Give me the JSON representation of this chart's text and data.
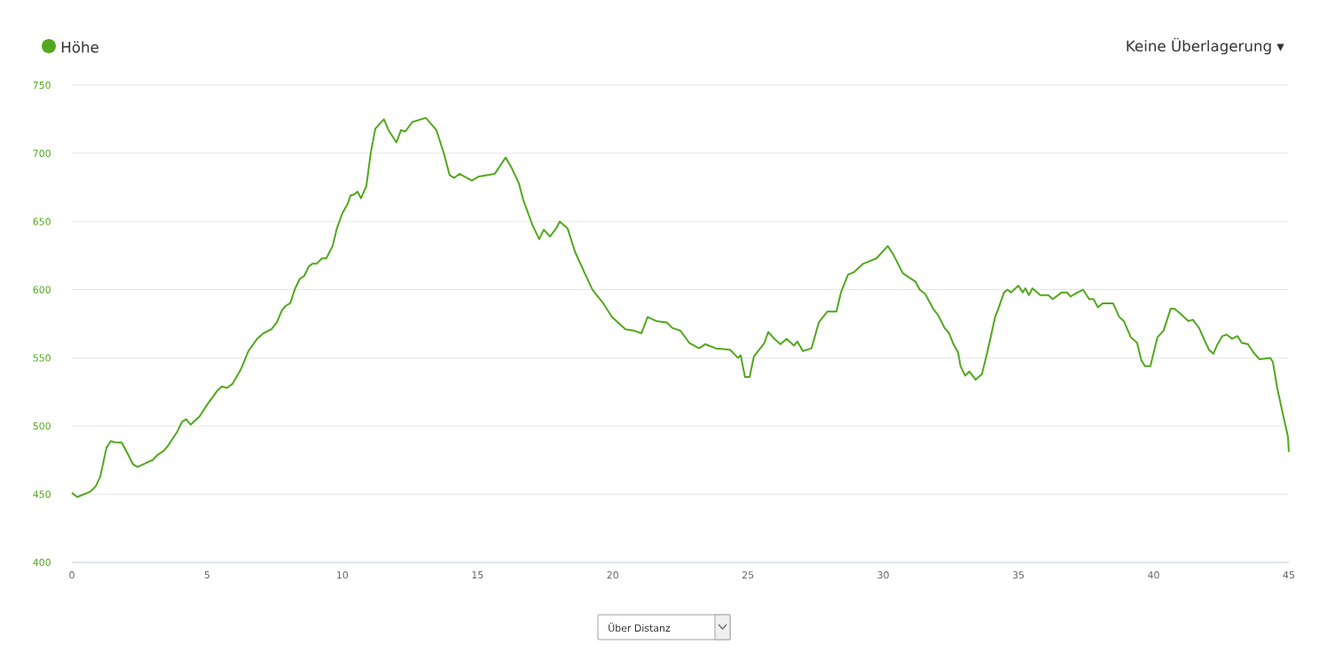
{
  "chart_data": {
    "type": "line",
    "x": [
      0,
      0.2,
      0.69,
      0.89,
      1.05,
      1.28,
      1.44,
      1.61,
      1.84,
      2.03,
      2.26,
      2.43,
      2.75,
      2.98,
      3.18,
      3.41,
      3.57,
      3.9,
      4.07,
      4.23,
      4.39,
      4.72,
      5.05,
      5.38,
      5.54,
      5.74,
      5.94,
      6.26,
      6.53,
      6.85,
      7.08,
      7.38,
      7.58,
      7.77,
      7.9,
      8.07,
      8.26,
      8.43,
      8.59,
      8.76,
      8.89,
      9.05,
      9.25,
      9.41,
      9.64,
      9.8,
      10.0,
      10.2,
      10.3,
      10.46,
      10.56,
      10.69,
      10.89,
      11.05,
      11.22,
      11.54,
      11.71,
      12.0,
      12.17,
      12.33,
      12.59,
      13.09,
      13.48,
      13.74,
      13.97,
      14.14,
      14.33,
      14.79,
      15.05,
      15.64,
      16.04,
      16.27,
      16.53,
      16.69,
      17.02,
      17.28,
      17.45,
      17.68,
      17.91,
      18.04,
      18.33,
      18.6,
      18.99,
      19.25,
      19.65,
      19.97,
      20.47,
      20.79,
      21.06,
      21.29,
      21.61,
      22.0,
      22.2,
      22.5,
      22.83,
      23.19,
      23.42,
      23.81,
      24.34,
      24.63,
      24.73,
      24.89,
      25.06,
      25.22,
      25.61,
      25.75,
      25.98,
      26.2,
      26.43,
      26.7,
      26.83,
      27.03,
      27.35,
      27.62,
      27.94,
      28.27,
      28.44,
      28.7,
      28.93,
      29.26,
      29.75,
      30.17,
      30.37,
      30.73,
      31.19,
      31.35,
      31.55,
      31.85,
      32.04,
      32.27,
      32.44,
      32.6,
      32.77,
      32.86,
      33.03,
      33.19,
      33.42,
      33.65,
      33.85,
      34.14,
      34.24,
      34.47,
      34.6,
      34.73,
      35.0,
      35.16,
      35.26,
      35.39,
      35.52,
      35.81,
      36.11,
      36.27,
      36.6,
      36.8,
      36.93,
      37.19,
      37.39,
      37.62,
      37.78,
      37.94,
      38.11,
      38.5,
      38.73,
      38.9,
      39.16,
      39.39,
      39.55,
      39.68,
      39.88,
      40.14,
      40.37,
      40.63,
      40.77,
      40.96,
      41.29,
      41.45,
      41.68,
      41.88,
      42.05,
      42.21,
      42.34,
      42.54,
      42.7,
      42.9,
      43.1,
      43.26,
      43.49,
      43.69,
      43.92,
      44.31,
      44.41,
      44.57,
      44.8,
      44.97,
      45
    ],
    "series": [
      {
        "name": "Höhe",
        "color": "#52a81c",
        "values": [
          451,
          448,
          452,
          456,
          463,
          484,
          489,
          488,
          488,
          481,
          472,
          470,
          473,
          475,
          479,
          482,
          486,
          496,
          503,
          505,
          501,
          507,
          517,
          526,
          529,
          528,
          531,
          542,
          555,
          564,
          568,
          571,
          576,
          585,
          588,
          590,
          601,
          608,
          610,
          617,
          619,
          619,
          623,
          623,
          632,
          645,
          656,
          663,
          669,
          670,
          672,
          667,
          676,
          700,
          718,
          725,
          717,
          708,
          717,
          716,
          723,
          726,
          717,
          701,
          684,
          682,
          685,
          680,
          683,
          685,
          697,
          689,
          678,
          666,
          648,
          637,
          644,
          639,
          645,
          650,
          645,
          628,
          611,
          600,
          590,
          580,
          571,
          570,
          568,
          580,
          577,
          576,
          572,
          570,
          561,
          557,
          560,
          557,
          556,
          550,
          552,
          536,
          536,
          551,
          561,
          569,
          564,
          560,
          564,
          559,
          562,
          555,
          557,
          576,
          584,
          584,
          598,
          611,
          613,
          619,
          623,
          632,
          626,
          612,
          606,
          600,
          597,
          586,
          581,
          572,
          568,
          560,
          554,
          544,
          537,
          540,
          534,
          538,
          554,
          580,
          585,
          598,
          600,
          598,
          603,
          598,
          601,
          596,
          601,
          596,
          596,
          593,
          598,
          598,
          595,
          598,
          600,
          593,
          593,
          587,
          590,
          590,
          580,
          577,
          565,
          561,
          548,
          544,
          544,
          565,
          570,
          586,
          586,
          583,
          577,
          578,
          572,
          563,
          556,
          553,
          559,
          566,
          567,
          564,
          566,
          561,
          560,
          554,
          549,
          550,
          547,
          528,
          507,
          492,
          481
        ]
      }
    ],
    "xlim": [
      0,
      45
    ],
    "ylim": [
      400,
      750
    ],
    "xticks": [
      0,
      5,
      10,
      15,
      20,
      25,
      30,
      35,
      40,
      45
    ],
    "yticks": [
      400,
      450,
      500,
      550,
      600,
      650,
      700,
      750
    ],
    "grid": "y",
    "legend": "top left",
    "annotations": [
      "Keine Überlagerung ▾",
      "Über Distanz"
    ]
  }
}
